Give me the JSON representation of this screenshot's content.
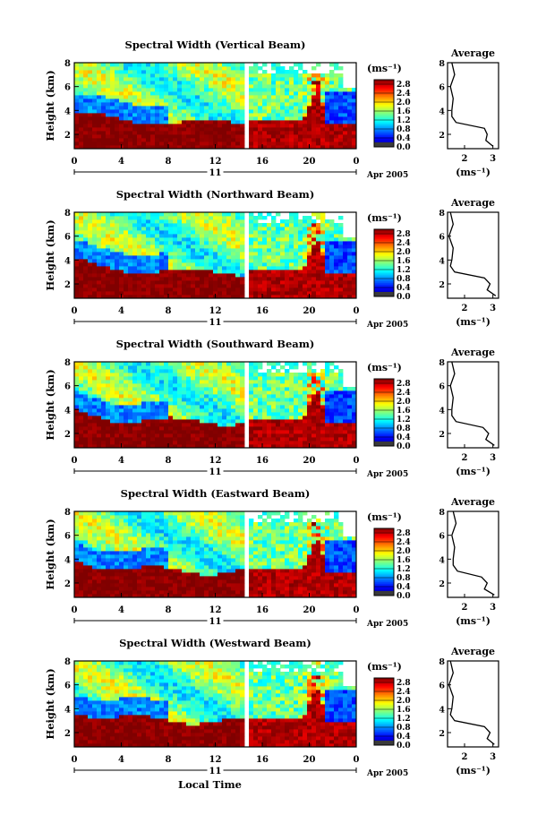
{
  "figure": {
    "xlabel": "Local Time",
    "day_label": "11",
    "date_label": "Apr 2005",
    "ylabel": "Height (km)",
    "unit_label": "(ms⁻¹)",
    "avg_title": "Average",
    "avg_xlabel": "(ms⁻¹)"
  },
  "chart_data": [
    {
      "type": "heatmap",
      "title": "Spectral Width (Vertical Beam)",
      "xlabel": "Local Time",
      "ylabel": "Height (km)",
      "x_ticks": [
        "0",
        "4",
        "8",
        "12",
        "16",
        "20",
        "0"
      ],
      "y_ticks": [
        "8",
        "6",
        "4",
        "2"
      ],
      "xlim": [
        0,
        24
      ],
      "ylim": [
        0.8,
        8
      ],
      "colorbar": {
        "label": "(ms⁻¹)",
        "ticks": [
          "2.8",
          "2.4",
          "2.0",
          "1.6",
          "1.2",
          "0.8",
          "0.4",
          "0.0"
        ],
        "range": [
          0.0,
          3.0
        ]
      },
      "average": {
        "title": "Average",
        "xlabel": "(ms⁻¹)",
        "x_ticks": [
          "2",
          "3"
        ],
        "y_ticks": [
          "8",
          "6",
          "4",
          "2"
        ],
        "xlim": [
          1.4,
          3.2
        ],
        "heights": [
          1.0,
          1.5,
          2.0,
          2.5,
          3.0,
          3.5,
          4.0,
          5.0,
          6.0,
          7.0,
          8.0
        ],
        "values": [
          3.0,
          2.75,
          2.8,
          2.7,
          1.7,
          1.55,
          1.55,
          1.6,
          1.5,
          1.65,
          1.55
        ]
      }
    },
    {
      "type": "heatmap",
      "title": "Spectral Width (Northward Beam)",
      "xlabel": "Local Time",
      "ylabel": "Height (km)",
      "x_ticks": [
        "0",
        "4",
        "8",
        "12",
        "16",
        "20",
        "0"
      ],
      "y_ticks": [
        "8",
        "6",
        "4",
        "2"
      ],
      "xlim": [
        0,
        24
      ],
      "ylim": [
        0.8,
        8
      ],
      "colorbar": {
        "label": "(ms⁻¹)",
        "ticks": [
          "2.8",
          "2.4",
          "2.0",
          "1.6",
          "1.2",
          "0.8",
          "0.4",
          "0.0"
        ],
        "range": [
          0.0,
          3.0
        ]
      },
      "average": {
        "title": "Average",
        "xlabel": "(ms⁻¹)",
        "x_ticks": [
          "2",
          "3"
        ],
        "y_ticks": [
          "8",
          "6",
          "4",
          "2"
        ],
        "xlim": [
          1.4,
          3.2
        ],
        "heights": [
          1.0,
          1.5,
          2.0,
          2.5,
          3.0,
          3.5,
          4.0,
          5.0,
          6.0,
          7.0,
          8.0
        ],
        "values": [
          3.1,
          2.8,
          2.9,
          2.7,
          1.65,
          1.5,
          1.55,
          1.6,
          1.45,
          1.6,
          1.5
        ]
      }
    },
    {
      "type": "heatmap",
      "title": "Spectral Width (Southward Beam)",
      "xlabel": "Local Time",
      "ylabel": "Height (km)",
      "x_ticks": [
        "0",
        "4",
        "8",
        "12",
        "16",
        "20",
        "0"
      ],
      "y_ticks": [
        "8",
        "6",
        "4",
        "2"
      ],
      "xlim": [
        0,
        24
      ],
      "ylim": [
        0.8,
        8
      ],
      "colorbar": {
        "label": "(ms⁻¹)",
        "ticks": [
          "2.8",
          "2.4",
          "2.0",
          "1.6",
          "1.2",
          "0.8",
          "0.4",
          "0.0"
        ],
        "range": [
          0.0,
          3.0
        ]
      },
      "average": {
        "title": "Average",
        "xlabel": "(ms⁻¹)",
        "x_ticks": [
          "2",
          "3"
        ],
        "y_ticks": [
          "8",
          "6",
          "4",
          "2"
        ],
        "xlim": [
          1.4,
          3.2
        ],
        "heights": [
          1.0,
          1.5,
          2.0,
          2.5,
          3.0,
          3.5,
          4.0,
          5.0,
          6.0,
          7.0,
          8.0
        ],
        "values": [
          3.05,
          2.75,
          2.85,
          2.65,
          1.7,
          1.55,
          1.55,
          1.6,
          1.5,
          1.65,
          1.55
        ]
      }
    },
    {
      "type": "heatmap",
      "title": "Spectral Width (Eastward Beam)",
      "xlabel": "Local Time",
      "ylabel": "Height (km)",
      "x_ticks": [
        "0",
        "4",
        "8",
        "12",
        "16",
        "20",
        "0"
      ],
      "y_ticks": [
        "8",
        "6",
        "4",
        "2"
      ],
      "xlim": [
        0,
        24
      ],
      "ylim": [
        0.8,
        8
      ],
      "colorbar": {
        "label": "(ms⁻¹)",
        "ticks": [
          "2.8",
          "2.4",
          "2.0",
          "1.6",
          "1.2",
          "0.8",
          "0.4",
          "0.0"
        ],
        "range": [
          0.0,
          3.0
        ]
      },
      "average": {
        "title": "Average",
        "xlabel": "(ms⁻¹)",
        "x_ticks": [
          "2",
          "3"
        ],
        "y_ticks": [
          "8",
          "6",
          "4",
          "2"
        ],
        "xlim": [
          1.4,
          3.2
        ],
        "heights": [
          1.0,
          1.5,
          2.0,
          2.5,
          3.0,
          3.5,
          4.0,
          5.0,
          6.0,
          7.0,
          8.0
        ],
        "values": [
          3.05,
          2.7,
          2.8,
          2.6,
          1.75,
          1.6,
          1.6,
          1.65,
          1.55,
          1.7,
          1.6
        ]
      }
    },
    {
      "type": "heatmap",
      "title": "Spectral Width (Westward Beam)",
      "xlabel": "Local Time",
      "ylabel": "Height (km)",
      "x_ticks": [
        "0",
        "4",
        "8",
        "12",
        "16",
        "20",
        "0"
      ],
      "y_ticks": [
        "8",
        "6",
        "4",
        "2"
      ],
      "xlim": [
        0,
        24
      ],
      "ylim": [
        0.8,
        8
      ],
      "colorbar": {
        "label": "(ms⁻¹)",
        "ticks": [
          "2.8",
          "2.4",
          "2.0",
          "1.6",
          "1.2",
          "0.8",
          "0.4",
          "0.0"
        ],
        "range": [
          0.0,
          3.0
        ]
      },
      "average": {
        "title": "Average",
        "xlabel": "(ms⁻¹)",
        "x_ticks": [
          "2",
          "3"
        ],
        "y_ticks": [
          "8",
          "6",
          "4",
          "2"
        ],
        "xlim": [
          1.4,
          3.2
        ],
        "heights": [
          1.0,
          1.5,
          2.0,
          2.5,
          3.0,
          3.5,
          4.0,
          5.0,
          6.0,
          7.0,
          8.0
        ],
        "values": [
          3.05,
          2.8,
          2.9,
          2.7,
          1.65,
          1.5,
          1.55,
          1.6,
          1.45,
          1.6,
          1.5
        ]
      }
    }
  ]
}
